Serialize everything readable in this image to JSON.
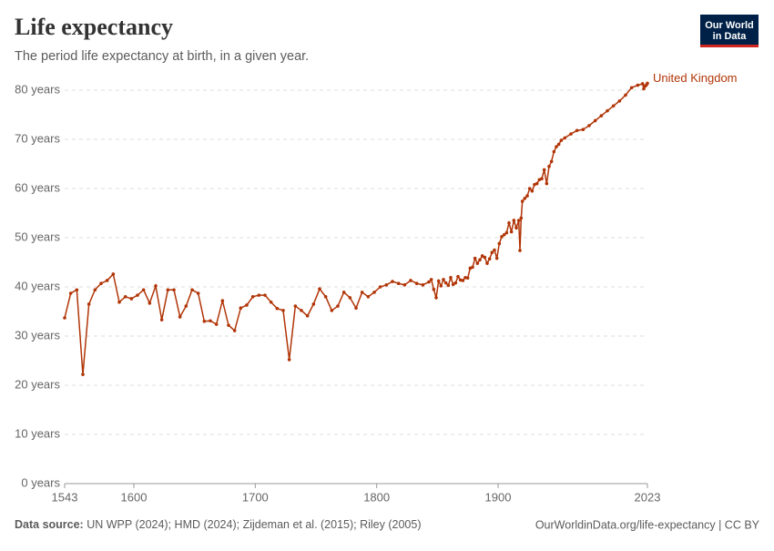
{
  "logo": [
    "Our World",
    "in Data"
  ],
  "footer": {
    "source_label": "Data source:",
    "source_text": "UN WPP (2024); HMD (2024); Zijdeman et al. (2015); Riley (2005)",
    "url_license": "OurWorldinData.org/life-expectancy | CC BY"
  },
  "chart_data": {
    "type": "line",
    "title": "Life expectancy",
    "subtitle": "The period life expectancy at birth, in a given year.",
    "x": [
      1543,
      1548,
      1553,
      1558,
      1563,
      1568,
      1573,
      1578,
      1583,
      1588,
      1593,
      1598,
      1603,
      1608,
      1613,
      1618,
      1623,
      1628,
      1633,
      1638,
      1643,
      1648,
      1653,
      1658,
      1663,
      1668,
      1673,
      1678,
      1683,
      1688,
      1693,
      1698,
      1703,
      1708,
      1713,
      1718,
      1723,
      1728,
      1733,
      1738,
      1743,
      1748,
      1753,
      1758,
      1763,
      1768,
      1773,
      1778,
      1783,
      1788,
      1793,
      1798,
      1803,
      1808,
      1813,
      1818,
      1823,
      1828,
      1833,
      1838,
      1843,
      1845,
      1847,
      1849,
      1851,
      1853,
      1855,
      1857,
      1859,
      1861,
      1863,
      1865,
      1867,
      1869,
      1871,
      1873,
      1875,
      1877,
      1879,
      1881,
      1883,
      1885,
      1887,
      1889,
      1891,
      1893,
      1895,
      1897,
      1899,
      1901,
      1903,
      1905,
      1907,
      1909,
      1911,
      1913,
      1915,
      1917,
      1918,
      1919,
      1920,
      1922,
      1924,
      1926,
      1928,
      1930,
      1932,
      1934,
      1936,
      1938,
      1940,
      1942,
      1944,
      1946,
      1948,
      1950,
      1952,
      1955,
      1960,
      1965,
      1970,
      1975,
      1980,
      1985,
      1990,
      1995,
      2000,
      2005,
      2010,
      2015,
      2019,
      2020,
      2021,
      2022,
      2023
    ],
    "series": [
      {
        "name": "United Kingdom",
        "color": "#b13507",
        "values": [
          33.7,
          38.7,
          39.4,
          22.2,
          36.5,
          39.4,
          40.7,
          41.3,
          42.6,
          36.9,
          38.0,
          37.6,
          38.3,
          39.4,
          36.7,
          40.2,
          33.3,
          39.4,
          39.4,
          33.9,
          36.1,
          39.4,
          38.7,
          33.0,
          33.1,
          32.4,
          37.2,
          32.2,
          31.1,
          35.7,
          36.3,
          38.0,
          38.3,
          38.3,
          36.9,
          35.6,
          35.2,
          25.2,
          36.1,
          35.2,
          34.1,
          36.5,
          39.6,
          38.0,
          35.2,
          36.1,
          38.9,
          37.8,
          35.7,
          38.9,
          38.0,
          38.9,
          40.0,
          40.4,
          41.1,
          40.7,
          40.4,
          41.3,
          40.7,
          40.4,
          41.0,
          41.5,
          39.5,
          37.8,
          41.2,
          40.2,
          41.5,
          40.8,
          40.3,
          41.9,
          40.5,
          40.8,
          42.1,
          41.4,
          41.3,
          41.9,
          41.8,
          43.8,
          44.0,
          45.8,
          44.8,
          45.5,
          46.3,
          46.0,
          44.8,
          45.7,
          47.0,
          47.5,
          45.8,
          48.8,
          50.2,
          50.6,
          51.0,
          53.0,
          51.2,
          53.5,
          52.0,
          53.5,
          47.4,
          54.0,
          57.4,
          58.0,
          58.5,
          60.0,
          59.5,
          60.8,
          61.0,
          61.8,
          62.0,
          63.8,
          61.0,
          64.5,
          65.5,
          67.5,
          68.5,
          69.0,
          69.8,
          70.3,
          71.1,
          71.8,
          72.0,
          72.8,
          73.8,
          74.8,
          75.8,
          76.8,
          77.8,
          79.0,
          80.5,
          81.0,
          81.3,
          80.3,
          80.8,
          81.0,
          81.4
        ]
      }
    ],
    "xlim": [
      1543,
      2023
    ],
    "xticks": [
      1543,
      1600,
      1700,
      1800,
      1900,
      2023
    ],
    "ylim": [
      0,
      80
    ],
    "yticks": [
      {
        "value": 0,
        "label": "0 years"
      },
      {
        "value": 10,
        "label": "10 years"
      },
      {
        "value": 20,
        "label": "20 years"
      },
      {
        "value": 30,
        "label": "30 years"
      },
      {
        "value": 40,
        "label": "40 years"
      },
      {
        "value": 50,
        "label": "50 years"
      },
      {
        "value": 60,
        "label": "60 years"
      },
      {
        "value": 70,
        "label": "70 years"
      },
      {
        "value": 80,
        "label": "80 years"
      }
    ],
    "grid": true
  }
}
